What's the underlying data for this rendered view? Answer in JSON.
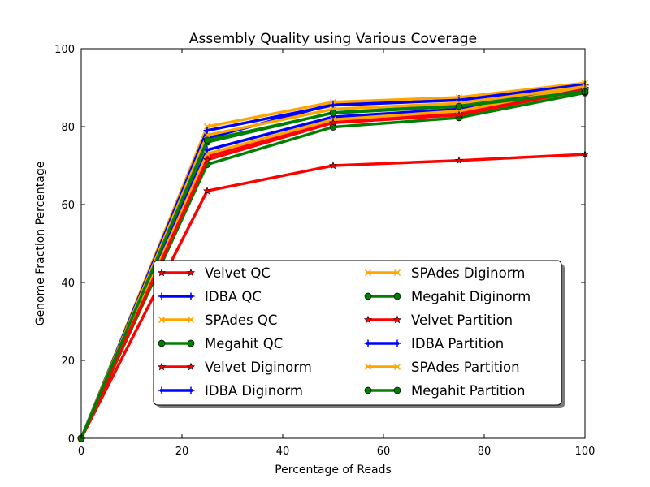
{
  "chart_data": {
    "type": "line",
    "title": "Assembly Quality using Various Coverage",
    "xlabel": "Percentage of Reads",
    "ylabel": "Genome Fraction Percentage",
    "xlim": [
      0,
      100
    ],
    "ylim": [
      0,
      100
    ],
    "xticks": [
      0,
      20,
      40,
      60,
      80,
      100
    ],
    "yticks": [
      0,
      20,
      40,
      60,
      80,
      100
    ],
    "grid": false,
    "legend_placement": "lower-center",
    "x": [
      0,
      25,
      50,
      75,
      100
    ],
    "series": [
      {
        "name": "Velvet QC",
        "color": "#ff0000",
        "marker": "star",
        "values": [
          0,
          63.5,
          70.0,
          71.3,
          72.9
        ]
      },
      {
        "name": "IDBA QC",
        "color": "#0000ff",
        "marker": "plus",
        "values": [
          0,
          77.0,
          85.8,
          87.2,
          90.7
        ]
      },
      {
        "name": "SPAdes QC",
        "color": "#ffa500",
        "marker": "x",
        "values": [
          0,
          80.0,
          86.3,
          87.5,
          91.2
        ]
      },
      {
        "name": "Megahit QC",
        "color": "#008000",
        "marker": "circle",
        "values": [
          0,
          76.0,
          83.6,
          85.5,
          89.5
        ]
      },
      {
        "name": "Velvet Diginorm",
        "color": "#ff0000",
        "marker": "star",
        "values": [
          0,
          72.3,
          81.5,
          83.3,
          89.8
        ]
      },
      {
        "name": "IDBA Diginorm",
        "color": "#0000ff",
        "marker": "plus",
        "values": [
          0,
          74.0,
          82.5,
          84.5,
          90.0
        ]
      },
      {
        "name": "SPAdes Diginorm",
        "color": "#ffa500",
        "marker": "x",
        "values": [
          0,
          73.0,
          81.8,
          84.0,
          90.3
        ]
      },
      {
        "name": "Megahit Diginorm",
        "color": "#008000",
        "marker": "circle",
        "values": [
          0,
          70.3,
          79.9,
          82.3,
          88.7
        ]
      },
      {
        "name": "Velvet Partition",
        "color": "#ff0000",
        "marker": "star",
        "values": [
          0,
          71.5,
          81.0,
          83.0,
          89.5
        ]
      },
      {
        "name": "IDBA Partition",
        "color": "#0000ff",
        "marker": "plus",
        "values": [
          0,
          79.0,
          85.5,
          86.8,
          90.8
        ]
      },
      {
        "name": "SPAdes Partition",
        "color": "#ffa500",
        "marker": "x",
        "values": [
          0,
          77.8,
          84.5,
          86.0,
          90.3
        ]
      },
      {
        "name": "Megahit Partition",
        "color": "#008000",
        "marker": "circle",
        "values": [
          0,
          76.5,
          83.5,
          85.2,
          89.0
        ]
      }
    ]
  }
}
